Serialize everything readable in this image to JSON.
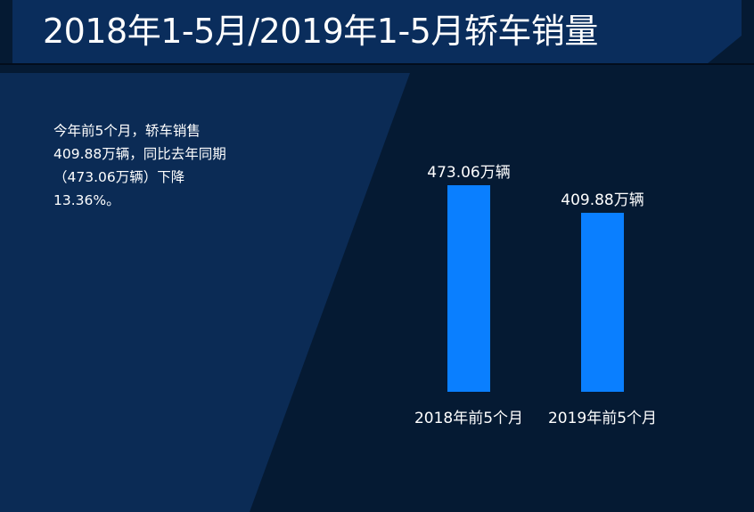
{
  "title": "2018年1-5月/2019年1-5月轿车销量",
  "description": {
    "lines": [
      "今年前5个月，轿车销售",
      "409.88万辆，同比去年同期",
      "（473.06万辆）下降",
      "13.36%。"
    ]
  },
  "colors": {
    "background": "#051a33",
    "title_bar": "#0a2d5c",
    "panel": "#0b2b55",
    "bar": "#0a7fff",
    "text": "#ffffff"
  },
  "chart_data": {
    "type": "bar",
    "categories": [
      "2018年前5个月",
      "2019年前5个月"
    ],
    "values": [
      473.06,
      409.88
    ],
    "value_labels": [
      "473.06万辆",
      "409.88万辆"
    ],
    "unit": "万辆",
    "ylim": [
      0,
      473.06
    ],
    "grid": false,
    "legend": "none"
  }
}
